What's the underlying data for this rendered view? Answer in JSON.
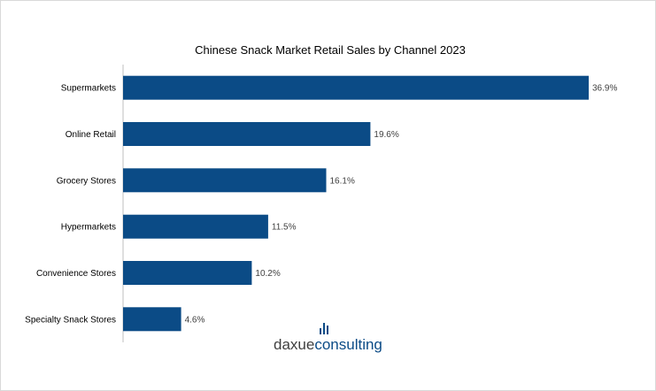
{
  "chart_data": {
    "type": "bar",
    "orientation": "horizontal",
    "title": "Chinese Snack Market Retail Sales by Channel 2023",
    "categories": [
      "Supermarkets",
      "Online Retail",
      "Grocery Stores",
      "Hypermarkets",
      "Convenience Stores",
      "Specialty Snack Stores"
    ],
    "values": [
      36.9,
      19.6,
      16.1,
      11.5,
      10.2,
      4.6
    ],
    "value_labels": [
      "36.9%",
      "19.6%",
      "16.1%",
      "11.5%",
      "10.2%",
      "4.6%"
    ],
    "unit": "%",
    "xlim": [
      0,
      36.9
    ],
    "xlabel": "",
    "ylabel": "",
    "grid": false,
    "legend": "none",
    "bar_color": "#0b4b86"
  },
  "watermark": {
    "part1": "daxue",
    "part2": "consulting",
    "color1": "#404040",
    "color2": "#0b4b86"
  },
  "colors": {
    "axis": "#bfbfbf",
    "border": "#d9d9d9"
  }
}
